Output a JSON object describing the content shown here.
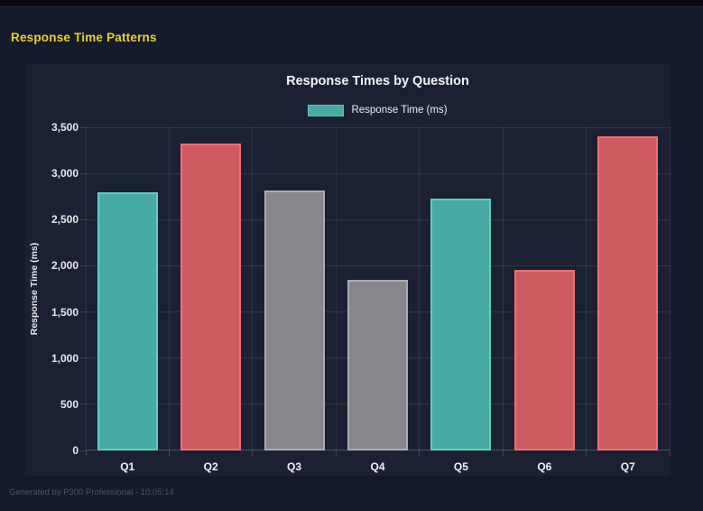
{
  "page": {
    "title": "Response Time Patterns",
    "footer": "Generated by P300 Professional - 10:05:14"
  },
  "chart_data": {
    "type": "bar",
    "title": "Response Times by Question",
    "legend": [
      {
        "label": "Response Time (ms)",
        "color": "#46aba5"
      }
    ],
    "legend_position": "top",
    "categories": [
      "Q1",
      "Q2",
      "Q3",
      "Q4",
      "Q5",
      "Q6",
      "Q7"
    ],
    "values": [
      2795,
      3325,
      2815,
      1845,
      2730,
      1955,
      3400
    ],
    "bar_colors": [
      "teal",
      "red",
      "gray",
      "gray",
      "teal",
      "red",
      "red"
    ],
    "colors": {
      "teal": {
        "fill": "#46aba5",
        "border": "#62cdc5"
      },
      "red": {
        "fill": "#ce5a62",
        "border": "#ef707a"
      },
      "gray": {
        "fill": "#87878d",
        "border": "#ababb2"
      }
    },
    "xlabel": "",
    "ylabel": "Response Time (ms)",
    "ylim": [
      0,
      3500
    ],
    "ytick_step": 500,
    "yticks": [
      "0",
      "500",
      "1,000",
      "1,500",
      "2,000",
      "2,500",
      "3,000",
      "3,500"
    ],
    "grid": true
  },
  "theme": {
    "page_bg": "#151a2b",
    "panel_bg": "#1b2133",
    "title_color": "#ecd12d",
    "text_color": "#f0f2f6"
  }
}
